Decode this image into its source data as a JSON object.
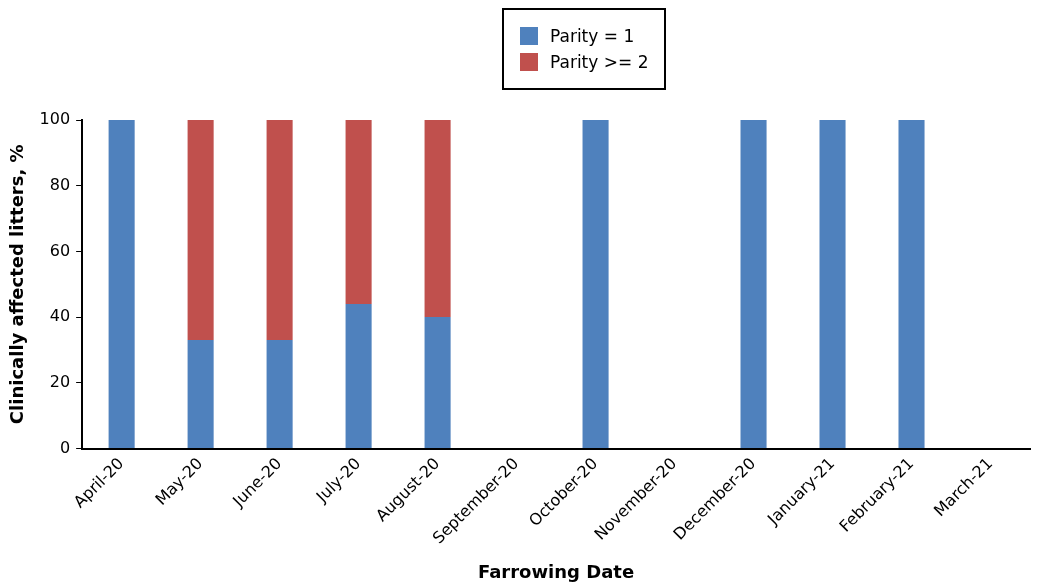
{
  "chart_data": {
    "type": "bar",
    "stacked": true,
    "xlabel": "Farrowing Date",
    "ylabel": "Clinically affected litters, %",
    "categories": [
      "April-20",
      "May-20",
      "June-20",
      "July-20",
      "August-20",
      "September-20",
      "October-20",
      "November-20",
      "December-20",
      "January-21",
      "February-21",
      "March-21"
    ],
    "series": [
      {
        "name": "Parity = 1",
        "color": "#4f81bd",
        "values": [
          100,
          33,
          33,
          44,
          40,
          null,
          100,
          null,
          100,
          100,
          100,
          null
        ]
      },
      {
        "name": "Parity >= 2",
        "color": "#c0504d",
        "values": [
          null,
          67,
          67,
          56,
          60,
          null,
          null,
          null,
          null,
          null,
          null,
          null
        ]
      }
    ],
    "ylim": [
      0,
      100
    ],
    "yticks": [
      0,
      20,
      40,
      60,
      80,
      100
    ],
    "grid": false,
    "legend": "top"
  }
}
